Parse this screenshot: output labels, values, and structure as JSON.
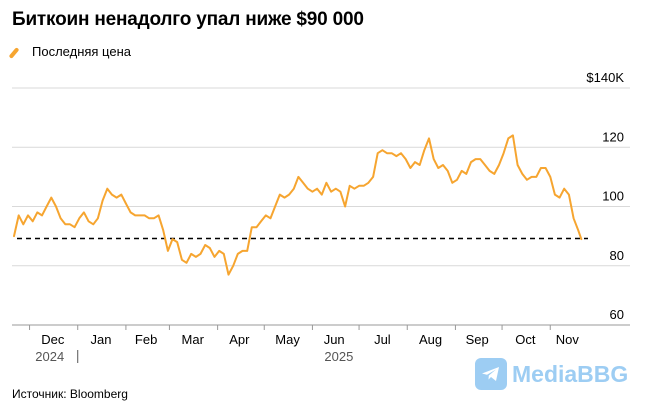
{
  "title": "Биткоин ненадолго упал ниже $90 000",
  "legend": {
    "label": "Последняя цена"
  },
  "source": "Источник: Bloomberg",
  "watermark": {
    "text": "MediaBBG",
    "icon": "telegram-plane-icon"
  },
  "colors": {
    "series": "#f6a530",
    "grid": "#d9d9d9",
    "reference": "#000000",
    "watermark": "#8cc5f2"
  },
  "chart_data": {
    "type": "line",
    "title": "Биткоин ненадолго упал ниже $90 000",
    "y_ticks": [
      "$140K",
      "120",
      "100",
      "80",
      "60"
    ],
    "ylim": [
      60,
      140
    ],
    "x_ticks": [
      "Dec",
      "Jan",
      "Feb",
      "Mar",
      "Apr",
      "May",
      "Jun",
      "Jul",
      "Aug",
      "Sep",
      "Oct",
      "Nov"
    ],
    "years": [
      "2024",
      "2025"
    ],
    "xlim": [
      "2024-11-21",
      "2025-11-24"
    ],
    "grid": true,
    "reference_line": {
      "value": 89.2,
      "style": "dashed"
    },
    "series": [
      {
        "name": "Последняя цена",
        "x": [
          "2024-11-21",
          "2024-11-24",
          "2024-11-27",
          "2024-11-30",
          "2024-12-03",
          "2024-12-06",
          "2024-12-09",
          "2024-12-12",
          "2024-12-15",
          "2024-12-18",
          "2024-12-21",
          "2024-12-24",
          "2024-12-27",
          "2024-12-30",
          "2025-01-02",
          "2025-01-05",
          "2025-01-08",
          "2025-01-11",
          "2025-01-14",
          "2025-01-17",
          "2025-01-20",
          "2025-01-23",
          "2025-01-26",
          "2025-01-29",
          "2025-02-01",
          "2025-02-04",
          "2025-02-07",
          "2025-02-10",
          "2025-02-13",
          "2025-02-16",
          "2025-02-19",
          "2025-02-22",
          "2025-02-25",
          "2025-02-28",
          "2025-03-03",
          "2025-03-06",
          "2025-03-09",
          "2025-03-12",
          "2025-03-15",
          "2025-03-18",
          "2025-03-21",
          "2025-03-24",
          "2025-03-27",
          "2025-03-30",
          "2025-04-02",
          "2025-04-05",
          "2025-04-08",
          "2025-04-11",
          "2025-04-14",
          "2025-04-17",
          "2025-04-20",
          "2025-04-23",
          "2025-04-26",
          "2025-04-29",
          "2025-05-02",
          "2025-05-05",
          "2025-05-08",
          "2025-05-11",
          "2025-05-14",
          "2025-05-17",
          "2025-05-20",
          "2025-05-23",
          "2025-05-26",
          "2025-05-29",
          "2025-06-01",
          "2025-06-04",
          "2025-06-07",
          "2025-06-10",
          "2025-06-13",
          "2025-06-16",
          "2025-06-19",
          "2025-06-22",
          "2025-06-25",
          "2025-06-28",
          "2025-07-01",
          "2025-07-04",
          "2025-07-07",
          "2025-07-10",
          "2025-07-13",
          "2025-07-16",
          "2025-07-19",
          "2025-07-22",
          "2025-07-25",
          "2025-07-28",
          "2025-07-31",
          "2025-08-03",
          "2025-08-06",
          "2025-08-09",
          "2025-08-12",
          "2025-08-15",
          "2025-08-18",
          "2025-08-21",
          "2025-08-24",
          "2025-08-27",
          "2025-08-30",
          "2025-09-02",
          "2025-09-05",
          "2025-09-08",
          "2025-09-11",
          "2025-09-14",
          "2025-09-17",
          "2025-09-20",
          "2025-09-23",
          "2025-09-26",
          "2025-09-29",
          "2025-10-02",
          "2025-10-05",
          "2025-10-08",
          "2025-10-11",
          "2025-10-14",
          "2025-10-17",
          "2025-10-20",
          "2025-10-23",
          "2025-10-26",
          "2025-10-29",
          "2025-11-01",
          "2025-11-04",
          "2025-11-07",
          "2025-11-10",
          "2025-11-13",
          "2025-11-16",
          "2025-11-19",
          "2025-11-21"
        ],
        "values": [
          90,
          97,
          94,
          97,
          95,
          98,
          97,
          100,
          103,
          100,
          96,
          94,
          94,
          93,
          96,
          98,
          95,
          94,
          96,
          102,
          106,
          104,
          103,
          104,
          101,
          98,
          97,
          97,
          97,
          96,
          96,
          97,
          92,
          85,
          89,
          88,
          82,
          81,
          84,
          83,
          84,
          87,
          86,
          83,
          85,
          84,
          77,
          80,
          84,
          85,
          85,
          93,
          93,
          95,
          97,
          96,
          100,
          104,
          103,
          104,
          106,
          110,
          108,
          106,
          105,
          106,
          104,
          108,
          105,
          106,
          105,
          100,
          107,
          106,
          107,
          107,
          108,
          110,
          118,
          119,
          118,
          118,
          117,
          118,
          116,
          113,
          115,
          114,
          119,
          123,
          116,
          113,
          114,
          112,
          108,
          109,
          112,
          111,
          115,
          116,
          116,
          114,
          112,
          111,
          114,
          118,
          123,
          124,
          114,
          111,
          109,
          110,
          110,
          113,
          113,
          110,
          104,
          103,
          106,
          104,
          96,
          92,
          89
        ]
      }
    ]
  }
}
